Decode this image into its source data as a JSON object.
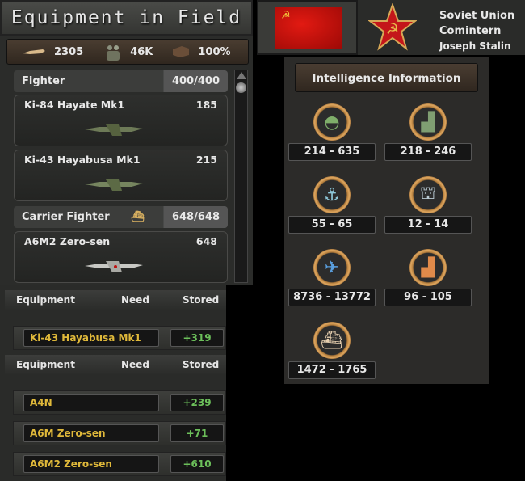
{
  "equipment_panel": {
    "title": "Equipment in Field",
    "stats": [
      {
        "icon": "plane-icon",
        "value": "2305"
      },
      {
        "icon": "manpower-icon",
        "value": "46K"
      },
      {
        "icon": "supply-crate-icon",
        "value": "100%"
      }
    ],
    "groups": [
      {
        "name": "Fighter",
        "count": "400/400",
        "items": [
          {
            "name": "Ki-84 Hayate Mk1",
            "value": "185"
          },
          {
            "name": "Ki-43 Hayabusa Mk1",
            "value": "215"
          }
        ]
      },
      {
        "name": "Carrier Fighter",
        "icon": "carrier-icon",
        "count": "648/648",
        "items": [
          {
            "name": "A6M2 Zero-sen",
            "value": "648"
          }
        ]
      }
    ]
  },
  "nation": {
    "name": "Soviet Union",
    "faction": "Comintern",
    "leader": "Joseph Stalin",
    "flag_color": "#d8140e"
  },
  "intel": {
    "title": "Intelligence Information",
    "items": [
      {
        "icon": "army-helmet-icon",
        "range": "214 - 635"
      },
      {
        "icon": "civilian-factory-icon",
        "range": "218 - 246"
      },
      {
        "icon": "navy-anchor-icon",
        "range": "55 - 65"
      },
      {
        "icon": "dockyard-icon",
        "range": "12 - 14"
      },
      {
        "icon": "air-plane-icon",
        "range": "8736 - 13772"
      },
      {
        "icon": "military-factory-icon",
        "range": "96 - 105"
      },
      {
        "icon": "convoy-ship-icon",
        "range": "1472 - 1765"
      }
    ]
  },
  "tables": [
    {
      "headers": [
        "Equipment",
        "Need",
        "Stored"
      ],
      "rows": [
        {
          "name": "Ki-43 Hayabusa Mk1",
          "stored": "+319"
        }
      ]
    },
    {
      "headers": [
        "Equipment",
        "Need",
        "Stored"
      ],
      "rows": [
        {
          "name": "A4N",
          "stored": "+239"
        },
        {
          "name": "A6M Zero-sen",
          "stored": "+71"
        },
        {
          "name": "A6M2 Zero-sen",
          "stored": "+610"
        }
      ]
    }
  ]
}
